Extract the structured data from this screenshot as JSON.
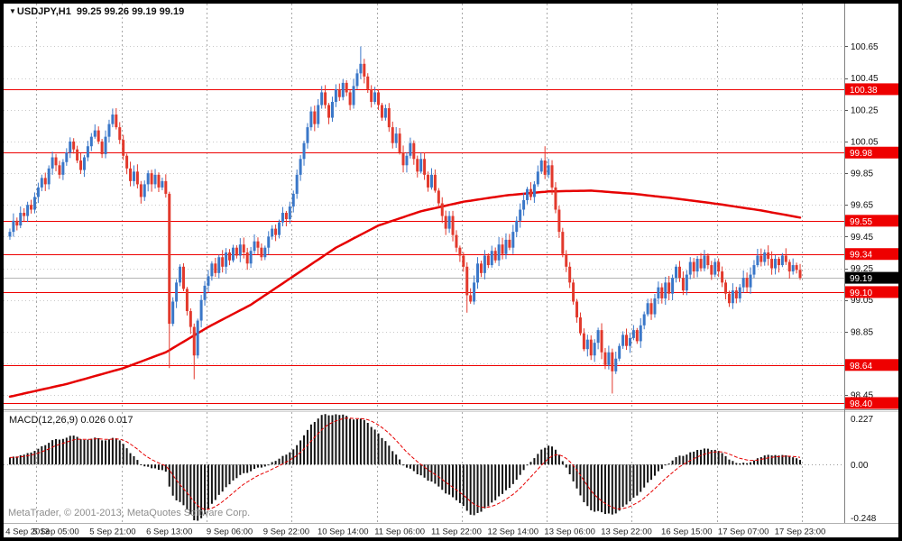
{
  "header": {
    "arrow": "▼",
    "symbol_period": "USDJPY,H1",
    "ohlc": "99.25 99.26 99.19 99.19"
  },
  "footer": {
    "copyright": "MetaTrader, © 2001-2013, MetaQuotes Software Corp."
  },
  "colors": {
    "background": "#ffffff",
    "frame": "#000000",
    "bull": "#3a77c8",
    "bear": "#e2392c",
    "level_line": "#ee0000",
    "current_label_bg": "#000000",
    "ma_line": "#e60000",
    "macd_histogram": "#141414",
    "macd_signal": "#e60000",
    "grid": "#c9c9c9",
    "grid_vertical": "#a8a8a8",
    "bid_line": "#b4b4b4"
  },
  "chart_data": {
    "type": "candlestick",
    "symbol": "USDJPY",
    "timeframe": "H1",
    "current_candle": {
      "open": 99.25,
      "high": 99.26,
      "low": 99.19,
      "close": 99.19
    },
    "price_axis": {
      "max": 100.92,
      "min": 98.36,
      "ticks": [
        100.65,
        100.45,
        100.25,
        100.05,
        99.85,
        99.65,
        99.45,
        99.25,
        99.05,
        98.85,
        98.65,
        98.45
      ]
    },
    "levels": [
      {
        "price": 100.38,
        "label": "100.38"
      },
      {
        "price": 99.98,
        "label": "99.98"
      },
      {
        "price": 99.55,
        "label": "99.55"
      },
      {
        "price": 99.34,
        "label": "99.34"
      },
      {
        "price": 99.1,
        "label": "99.10"
      },
      {
        "price": 98.64,
        "label": "98.64"
      },
      {
        "price": 98.4,
        "label": "98.40"
      }
    ],
    "current_price": {
      "price": 99.19,
      "label": "99.19"
    },
    "ma_keypoints": [
      [
        0,
        98.44
      ],
      [
        16,
        98.52
      ],
      [
        32,
        98.62
      ],
      [
        44,
        98.72
      ],
      [
        56,
        98.88
      ],
      [
        68,
        99.02
      ],
      [
        80,
        99.2
      ],
      [
        92,
        99.38
      ],
      [
        104,
        99.52
      ],
      [
        116,
        99.61
      ],
      [
        128,
        99.67
      ],
      [
        140,
        99.71
      ],
      [
        152,
        99.735
      ],
      [
        164,
        99.74
      ],
      [
        176,
        99.72
      ],
      [
        188,
        99.69
      ],
      [
        200,
        99.655
      ],
      [
        212,
        99.615
      ],
      [
        223,
        99.57
      ]
    ],
    "candles": {
      "first_open": 99.45,
      "closes": [
        99.48,
        99.55,
        99.52,
        99.6,
        99.58,
        99.65,
        99.62,
        99.7,
        99.76,
        99.82,
        99.78,
        99.88,
        99.95,
        99.9,
        99.84,
        99.92,
        99.98,
        100.05,
        100.0,
        99.93,
        99.87,
        99.95,
        100.02,
        100.08,
        100.12,
        100.05,
        99.97,
        100.08,
        100.16,
        100.22,
        100.14,
        100.06,
        99.96,
        99.88,
        99.8,
        99.86,
        99.78,
        99.7,
        99.78,
        99.85,
        99.78,
        99.84,
        99.76,
        99.8,
        99.72,
        98.9,
        99.04,
        99.16,
        99.26,
        99.12,
        98.98,
        98.88,
        98.7,
        98.92,
        99.05,
        99.14,
        99.2,
        99.28,
        99.22,
        99.32,
        99.26,
        99.35,
        99.3,
        99.38,
        99.33,
        99.4,
        99.35,
        99.28,
        99.36,
        99.42,
        99.38,
        99.32,
        99.38,
        99.45,
        99.5,
        99.46,
        99.54,
        99.6,
        99.56,
        99.64,
        99.72,
        99.84,
        99.94,
        100.04,
        100.14,
        100.24,
        100.16,
        100.28,
        100.36,
        100.28,
        100.2,
        100.3,
        100.38,
        100.33,
        100.42,
        100.36,
        100.28,
        100.4,
        100.48,
        100.54,
        100.46,
        100.38,
        100.3,
        100.36,
        100.28,
        100.2,
        100.26,
        100.14,
        100.04,
        100.1,
        99.98,
        99.9,
        99.96,
        100.04,
        99.94,
        99.86,
        99.94,
        99.84,
        99.76,
        99.84,
        99.74,
        99.66,
        99.58,
        99.5,
        99.58,
        99.46,
        99.38,
        99.33,
        99.26,
        99.08,
        99.04,
        99.16,
        99.28,
        99.22,
        99.33,
        99.27,
        99.36,
        99.3,
        99.4,
        99.34,
        99.43,
        99.38,
        99.48,
        99.55,
        99.62,
        99.68,
        99.75,
        99.7,
        99.78,
        99.86,
        99.93,
        99.84,
        99.9,
        99.76,
        99.62,
        99.48,
        99.34,
        99.26,
        99.16,
        99.04,
        98.94,
        98.84,
        98.74,
        98.8,
        98.7,
        98.78,
        98.86,
        98.72,
        98.64,
        98.72,
        98.6,
        98.68,
        98.76,
        98.83,
        98.76,
        98.81,
        98.86,
        98.79,
        98.89,
        98.96,
        99.03,
        98.96,
        99.06,
        99.13,
        99.06,
        99.16,
        99.09,
        99.19,
        99.26,
        99.19,
        99.11,
        99.21,
        99.29,
        99.23,
        99.31,
        99.25,
        99.33,
        99.27,
        99.21,
        99.29,
        99.23,
        99.16,
        99.09,
        99.03,
        99.11,
        99.06,
        99.13,
        99.19,
        99.13,
        99.21,
        99.27,
        99.33,
        99.29,
        99.35,
        99.31,
        99.25,
        99.31,
        99.27,
        99.33,
        99.29,
        99.23,
        99.27,
        99.24,
        99.19
      ],
      "wick_overrides": {
        "45": {
          "l": 98.62
        },
        "52": {
          "l": 98.55
        },
        "99": {
          "h": 100.65
        },
        "129": {
          "l": 98.97
        },
        "151": {
          "h": 100.02
        },
        "170": {
          "l": 98.46
        }
      }
    },
    "macd": {
      "label": "MACD(12,26,9)",
      "value": "0.026",
      "signal_value": "0.017",
      "fast": 12,
      "slow": 26,
      "signal_period": 9,
      "axis_labels": [
        "0.227",
        "0.00",
        "-0.248"
      ]
    },
    "time_axis": {
      "day_separator_indices": [
        8,
        32,
        56,
        80,
        104,
        128,
        152,
        176,
        200,
        224
      ],
      "labels": [
        {
          "i": 5,
          "label": "4 Sep 2013"
        },
        {
          "i": 13,
          "label": "5 Sep 05:00"
        },
        {
          "i": 29,
          "label": "5 Sep 21:00"
        },
        {
          "i": 45,
          "label": "6 Sep 13:00"
        },
        {
          "i": 62,
          "label": "9 Sep 06:00"
        },
        {
          "i": 78,
          "label": "9 Sep 22:00"
        },
        {
          "i": 94,
          "label": "10 Sep 14:00"
        },
        {
          "i": 110,
          "label": "11 Sep 06:00"
        },
        {
          "i": 126,
          "label": "11 Sep 22:00"
        },
        {
          "i": 142,
          "label": "12 Sep 14:00"
        },
        {
          "i": 158,
          "label": "13 Sep 06:00"
        },
        {
          "i": 174,
          "label": "13 Sep 22:00"
        },
        {
          "i": 191,
          "label": "16 Sep 15:00"
        },
        {
          "i": 207,
          "label": "17 Sep 07:00"
        },
        {
          "i": 223,
          "label": "17 Sep 23:00"
        }
      ]
    }
  }
}
